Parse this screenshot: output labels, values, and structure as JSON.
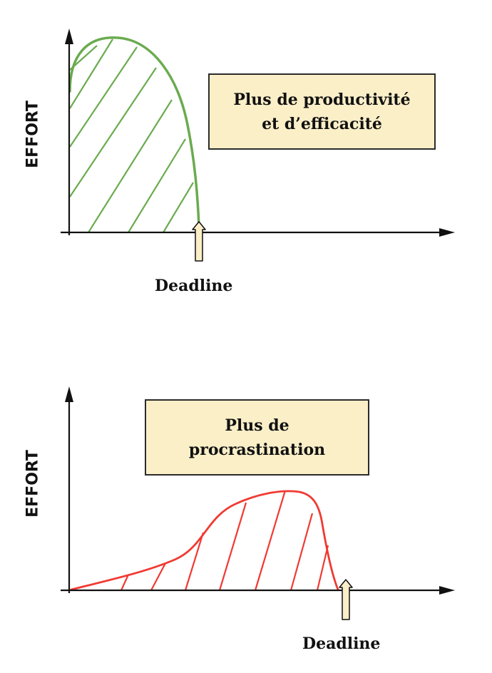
{
  "diagrams": [
    {
      "y_axis_label": "EFFORT",
      "note_lines": [
        "Plus de productivité",
        "et d’efficacité"
      ],
      "deadline_label": "Deadline",
      "curve_color": "#6aab4f"
    },
    {
      "y_axis_label": "EFFORT",
      "note_lines": [
        "Plus de",
        "procrastination"
      ],
      "deadline_label": "Deadline",
      "curve_color": "#f03a32"
    }
  ],
  "colors": {
    "axis": "#111111",
    "box_fill": "#fbefc8",
    "box_border": "#2b2b2b",
    "marker_fill": "#fbefc8"
  },
  "icons": [
    "y-axis-arrow-icon",
    "x-axis-arrow-icon",
    "deadline-arrow-icon"
  ]
}
